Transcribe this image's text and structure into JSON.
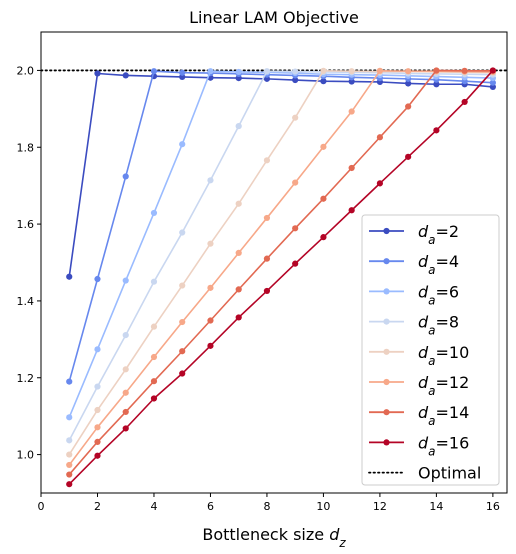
{
  "chart_data": {
    "type": "line",
    "title": "Linear LAM Objective",
    "xlabel": "Bottleneck size d_z",
    "ylabel": "",
    "xlim": [
      0,
      16.5
    ],
    "ylim": [
      0.9,
      2.1
    ],
    "xticks": [
      0,
      2,
      4,
      6,
      8,
      10,
      12,
      14,
      16
    ],
    "yticks": [
      1.0,
      1.2,
      1.4,
      1.6,
      1.8,
      2.0
    ],
    "grid": false,
    "legend_position": "lower-right",
    "series": [
      {
        "name": "d_a=2",
        "color": "#3b4cc0",
        "x": [
          1,
          2,
          3,
          4,
          5,
          6,
          7,
          8,
          9,
          10,
          11,
          12,
          13,
          14,
          15,
          16
        ],
        "values": [
          1.463,
          1.992,
          1.987,
          1.985,
          1.983,
          1.981,
          1.98,
          1.978,
          1.975,
          1.972,
          1.971,
          1.97,
          1.966,
          1.964,
          1.964,
          1.957
        ]
      },
      {
        "name": "d_a=4",
        "color": "#6788ee",
        "x": [
          1,
          2,
          3,
          4,
          5,
          6,
          7,
          8,
          9,
          10,
          11,
          12,
          13,
          14,
          15,
          16
        ],
        "values": [
          1.19,
          1.457,
          1.724,
          1.998,
          1.994,
          1.993,
          1.991,
          1.989,
          1.987,
          1.985,
          1.982,
          1.98,
          1.978,
          1.976,
          1.972,
          1.968
        ]
      },
      {
        "name": "d_a=6",
        "color": "#9abbff",
        "x": [
          1,
          2,
          3,
          4,
          5,
          6,
          7,
          8,
          9,
          10,
          11,
          12,
          13,
          14,
          15,
          16
        ],
        "values": [
          1.097,
          1.274,
          1.453,
          1.629,
          1.808,
          1.998,
          1.996,
          1.995,
          1.993,
          1.99,
          1.989,
          1.988,
          1.986,
          1.984,
          1.982,
          1.98
        ]
      },
      {
        "name": "d_a=8",
        "color": "#c9d7f0",
        "x": [
          1,
          2,
          3,
          4,
          5,
          6,
          7,
          8,
          9,
          10,
          11,
          12,
          13,
          14,
          15,
          16
        ],
        "values": [
          1.037,
          1.177,
          1.311,
          1.45,
          1.578,
          1.714,
          1.855,
          1.998,
          1.997,
          1.996,
          1.995,
          1.994,
          1.992,
          1.991,
          1.99,
          1.989
        ]
      },
      {
        "name": "d_a=10",
        "color": "#edd1c2",
        "x": [
          1,
          2,
          3,
          4,
          5,
          6,
          7,
          8,
          9,
          10,
          11,
          12,
          13,
          14,
          15,
          16
        ],
        "values": [
          1.0,
          1.116,
          1.222,
          1.333,
          1.44,
          1.549,
          1.653,
          1.766,
          1.877,
          1.999,
          1.998,
          1.997,
          1.997,
          1.996,
          1.995,
          1.994
        ]
      },
      {
        "name": "d_a=12",
        "color": "#f7a889",
        "x": [
          1,
          2,
          3,
          4,
          5,
          6,
          7,
          8,
          9,
          10,
          11,
          12,
          13,
          14,
          15,
          16
        ],
        "values": [
          0.973,
          1.071,
          1.161,
          1.254,
          1.345,
          1.434,
          1.525,
          1.616,
          1.708,
          1.801,
          1.893,
          1.999,
          1.998,
          1.998,
          1.997,
          1.996
        ]
      },
      {
        "name": "d_a=14",
        "color": "#e26952",
        "x": [
          1,
          2,
          3,
          4,
          5,
          6,
          7,
          8,
          9,
          10,
          11,
          12,
          13,
          14,
          15,
          16
        ],
        "values": [
          0.948,
          1.033,
          1.111,
          1.191,
          1.269,
          1.349,
          1.43,
          1.51,
          1.589,
          1.666,
          1.746,
          1.826,
          1.906,
          2.0,
          1.999,
          1.999
        ]
      },
      {
        "name": "d_a=16",
        "color": "#b40426",
        "x": [
          1,
          2,
          3,
          4,
          5,
          6,
          7,
          8,
          9,
          10,
          11,
          12,
          13,
          14,
          15,
          16
        ],
        "values": [
          0.923,
          0.997,
          1.068,
          1.146,
          1.211,
          1.283,
          1.357,
          1.426,
          1.497,
          1.566,
          1.636,
          1.706,
          1.775,
          1.844,
          1.918,
          2.0
        ]
      }
    ],
    "reference_line": {
      "name": "Optimal",
      "y": 2.0,
      "style": "dotted",
      "color": "#000000"
    }
  }
}
